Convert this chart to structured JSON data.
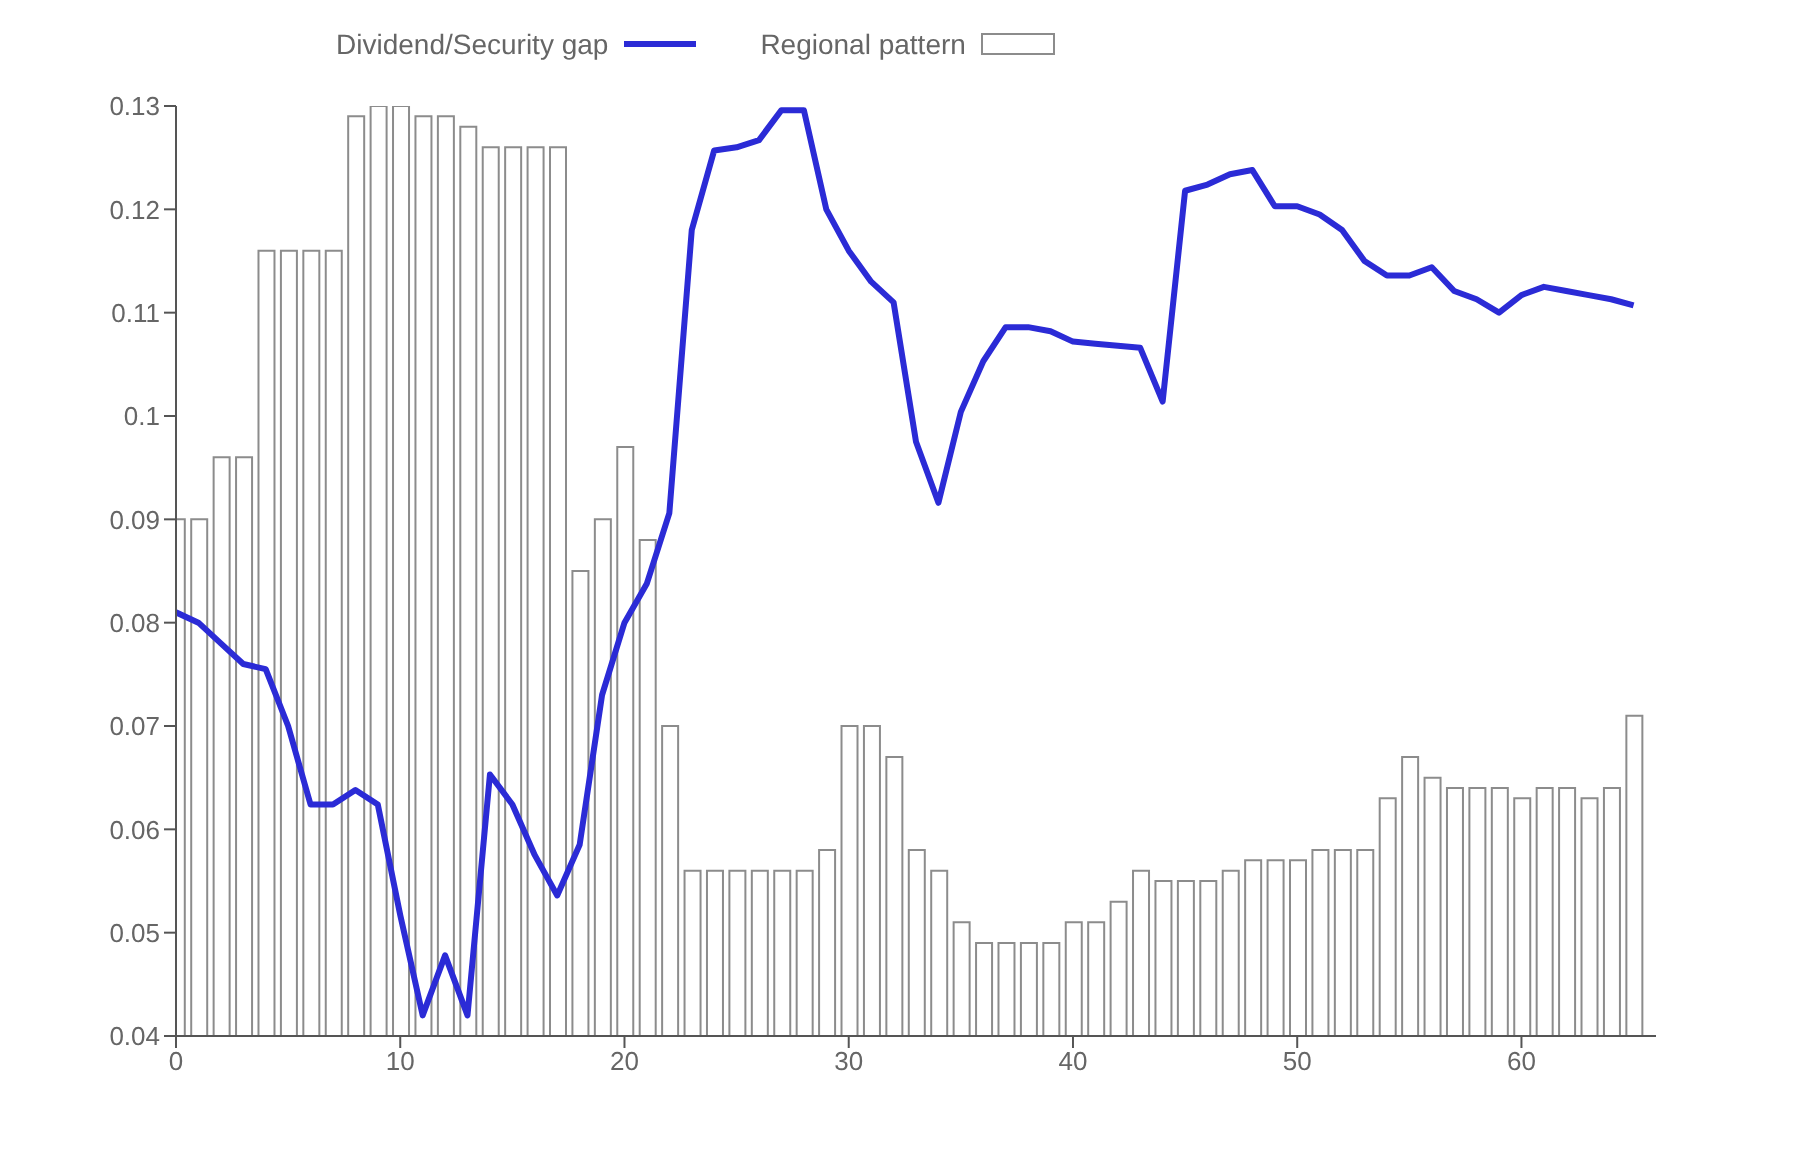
{
  "chart_data": {
    "type": "line",
    "x": [
      0,
      1,
      2,
      3,
      4,
      5,
      6,
      7,
      8,
      9,
      10,
      11,
      12,
      13,
      14,
      15,
      16,
      17,
      18,
      19,
      20,
      21,
      22,
      23,
      24,
      25,
      26,
      27,
      28,
      29,
      30,
      31,
      32,
      33,
      34,
      35,
      36,
      37,
      38,
      39,
      40,
      41,
      42,
      43,
      44,
      45,
      46,
      47,
      48,
      49,
      50,
      51,
      52,
      53,
      54,
      55,
      56,
      57,
      58,
      59,
      60,
      61,
      62,
      63,
      64,
      65
    ],
    "xlim": [
      0,
      66
    ],
    "xticks": [
      0,
      10,
      20,
      30,
      40,
      50,
      60
    ],
    "ylim": [
      0.04,
      0.13
    ],
    "yticks": [
      0.04,
      0.05,
      0.06,
      0.07,
      0.08,
      0.09,
      0.1,
      0.11,
      0.12,
      0.13
    ],
    "legend": "top",
    "marker": "none",
    "series": [
      {
        "name": "Dividend/Security gap",
        "color": "#2b2bd6",
        "values": [
          0.081,
          0.08,
          0.078,
          0.076,
          0.0755,
          0.07,
          0.0624,
          0.0624,
          0.0638,
          0.0624,
          0.0517,
          0.042,
          0.0478,
          0.042,
          0.0653,
          0.0624,
          0.0575,
          0.0536,
          0.0585,
          0.073,
          0.08,
          0.0838,
          0.0906,
          0.118,
          0.1257,
          0.126,
          0.1267,
          0.1296,
          0.1296,
          0.12,
          0.116,
          0.113,
          0.111,
          0.0975,
          0.0916,
          0.1004,
          0.1053,
          0.1086,
          0.1086,
          0.1082,
          0.1072,
          0.107,
          0.1068,
          0.1066,
          0.1014,
          0.1218,
          0.1224,
          0.1234,
          0.1238,
          0.1203,
          0.1203,
          0.1195,
          0.118,
          0.115,
          0.1136,
          0.1136,
          0.1144,
          0.1121,
          0.1113,
          0.11,
          0.1117,
          0.1125,
          0.1121,
          0.1117,
          0.1113,
          0.1107
        ]
      },
      {
        "name": "Regional pattern",
        "type": "bar",
        "color": "#8c8c8c",
        "values": [
          0.09,
          0.09,
          0.096,
          0.096,
          0.116,
          0.116,
          0.116,
          0.116,
          0.129,
          0.13,
          0.13,
          0.129,
          0.129,
          0.128,
          0.126,
          0.126,
          0.126,
          0.126,
          0.085,
          0.09,
          0.097,
          0.088,
          0.07,
          0.056,
          0.056,
          0.056,
          0.056,
          0.056,
          0.056,
          0.058,
          0.07,
          0.07,
          0.067,
          0.058,
          0.056,
          0.051,
          0.049,
          0.049,
          0.049,
          0.049,
          0.051,
          0.051,
          0.053,
          0.056,
          0.055,
          0.055,
          0.055,
          0.056,
          0.057,
          0.057,
          0.057,
          0.058,
          0.058,
          0.058,
          0.063,
          0.067,
          0.065,
          0.064,
          0.064,
          0.064,
          0.063,
          0.064,
          0.064,
          0.063,
          0.064,
          0.071
        ]
      }
    ]
  }
}
